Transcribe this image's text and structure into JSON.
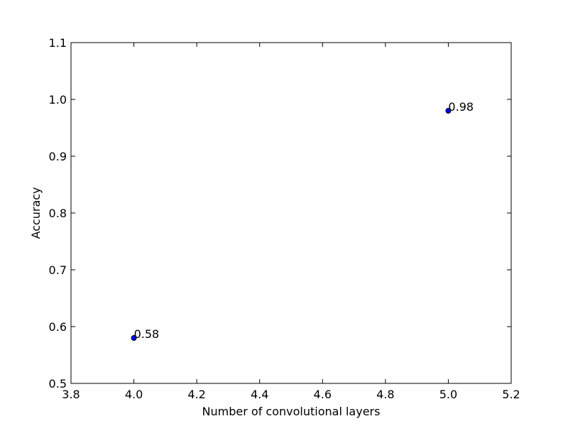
{
  "chart_data": {
    "type": "scatter",
    "title": "",
    "xlabel": "Number of convolutional layers",
    "ylabel": "Accuracy",
    "xlim": [
      3.8,
      5.2
    ],
    "ylim": [
      0.5,
      1.1
    ],
    "x_ticks": [
      "3.8",
      "4.0",
      "4.2",
      "4.4",
      "4.6",
      "4.8",
      "5.0",
      "5.2"
    ],
    "y_ticks": [
      "0.5",
      "0.6",
      "0.7",
      "0.8",
      "0.9",
      "1.0",
      "1.1"
    ],
    "grid": false,
    "series": [
      {
        "x": [
          4,
          5
        ],
        "y": [
          0.58,
          0.98
        ],
        "point_labels": [
          "0.58",
          "0.98"
        ],
        "color": "#0000ff"
      }
    ]
  }
}
